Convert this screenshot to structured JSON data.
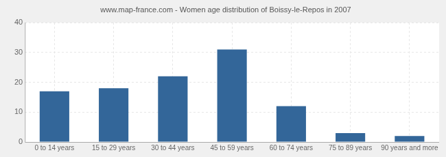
{
  "chart_data": {
    "type": "bar",
    "title": "www.map-france.com - Women age distribution of Boissy-le-Repos in 2007",
    "categories": [
      "0 to 14 years",
      "15 to 29 years",
      "30 to 44 years",
      "45 to 59 years",
      "60 to 74 years",
      "75 to 89 years",
      "90 years and more"
    ],
    "values": [
      17,
      18,
      22,
      31,
      12,
      3,
      2
    ],
    "color": "#336699",
    "ylim": [
      0,
      40
    ],
    "yticks": [
      0,
      10,
      20,
      30,
      40
    ],
    "grid": true
  }
}
